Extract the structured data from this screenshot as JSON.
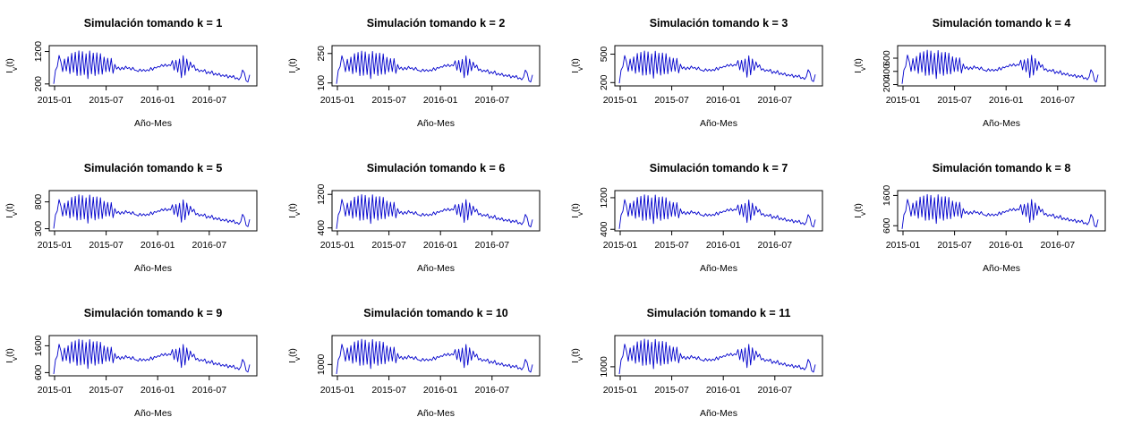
{
  "figure": {
    "x_tick_labels": [
      "2015-01",
      "2015-07",
      "2016-01",
      "2016-07"
    ],
    "xlabel": "Año-Mes",
    "ylabel_base": "I",
    "ylabel_sub": "v",
    "ylabel_arg": "(t)",
    "series_color": "#0000cc"
  },
  "chart_data": [
    {
      "type": "line",
      "title": "Simulación tomando k = 1",
      "yticks": [
        200,
        1200
      ],
      "ylim": [
        140,
        1380
      ],
      "peak": 1300,
      "low": 180
    },
    {
      "type": "line",
      "title": "Simulación tomando k = 2",
      "yticks": [
        100,
        250
      ],
      "ylim": [
        85,
        290
      ],
      "peak": 275,
      "low": 92
    },
    {
      "type": "line",
      "title": "Simulación tomando k = 3",
      "yticks": [
        200,
        500
      ],
      "ylim": [
        165,
        590
      ],
      "peak": 560,
      "low": 185
    },
    {
      "type": "line",
      "title": "Simulación tomando k = 4",
      "yticks": [
        200,
        400,
        600
      ],
      "ylim": [
        180,
        790
      ],
      "peak": 760,
      "low": 200
    },
    {
      "type": "line",
      "title": "Simulación tomando k = 5",
      "yticks": [
        300,
        800
      ],
      "ylim": [
        260,
        1010
      ],
      "peak": 980,
      "low": 290
    },
    {
      "type": "line",
      "title": "Simulación tomando k = 6",
      "yticks": [
        400,
        1200
      ],
      "ylim": [
        330,
        1290
      ],
      "peak": 1260,
      "low": 360
    },
    {
      "type": "line",
      "title": "Simulación tomando k = 7",
      "yticks": [
        400,
        1200
      ],
      "ylim": [
        360,
        1380
      ],
      "peak": 1340,
      "low": 390
    },
    {
      "type": "line",
      "title": "Simulación tomando k = 8",
      "yticks": [
        600,
        1600
      ],
      "ylim": [
        430,
        1760
      ],
      "peak": 1720,
      "low": 470
    },
    {
      "type": "line",
      "title": "Simulación tomando k = 9",
      "yticks": [
        600,
        1600
      ],
      "ylim": [
        480,
        1980
      ],
      "peak": 1940,
      "low": 520
    },
    {
      "type": "line",
      "title": "Simulación tomando k = 10",
      "yticks": [
        1000
      ],
      "ylim": [
        540,
        2180
      ],
      "peak": 2140,
      "low": 580
    },
    {
      "type": "line",
      "title": "Simulación tomando k = 11",
      "yticks": [
        1000
      ],
      "ylim": [
        600,
        2380
      ],
      "peak": 2340,
      "low": 640
    }
  ]
}
